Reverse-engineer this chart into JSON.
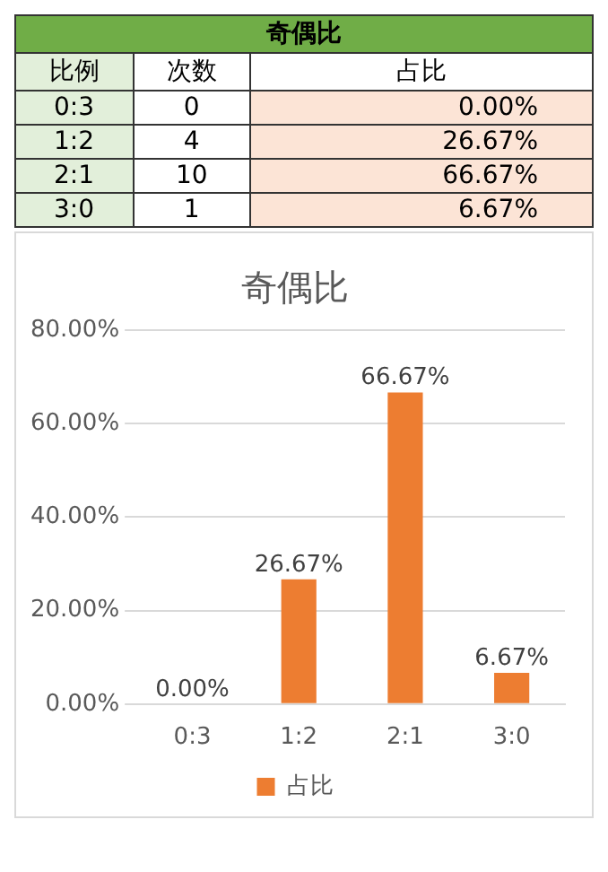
{
  "chart_data": [
    {
      "type": "other",
      "title": "奇偶比",
      "categories": [
        "比例",
        "次数",
        "占比"
      ],
      "y_categories": [
        "0:3",
        "1:2",
        "2:1",
        "3:0"
      ],
      "cell_labels": [
        [
          "0",
          "0.00%"
        ],
        [
          "4",
          "26.67%"
        ],
        [
          "10",
          "66.67%"
        ],
        [
          "1",
          "6.67%"
        ]
      ]
    },
    {
      "type": "bar",
      "title": "奇偶比",
      "categories": [
        "0:3",
        "1:2",
        "2:1",
        "3:0"
      ],
      "series": [
        {
          "name": "占比",
          "color": "#ed7d31",
          "values": [
            0,
            26.67,
            66.67,
            6.67
          ],
          "value_labels": [
            "0.00%",
            "26.67%",
            "66.67%",
            "6.67%"
          ]
        }
      ],
      "ylim": [
        0,
        80
      ],
      "yticks": [
        {
          "value": 0,
          "label": "0.00%"
        },
        {
          "value": 20,
          "label": "20.00%"
        },
        {
          "value": 40,
          "label": "40.00%"
        },
        {
          "value": 60,
          "label": "60.00%"
        },
        {
          "value": 80,
          "label": "80.00%"
        }
      ],
      "grid": "y",
      "legend": "bottom"
    }
  ]
}
